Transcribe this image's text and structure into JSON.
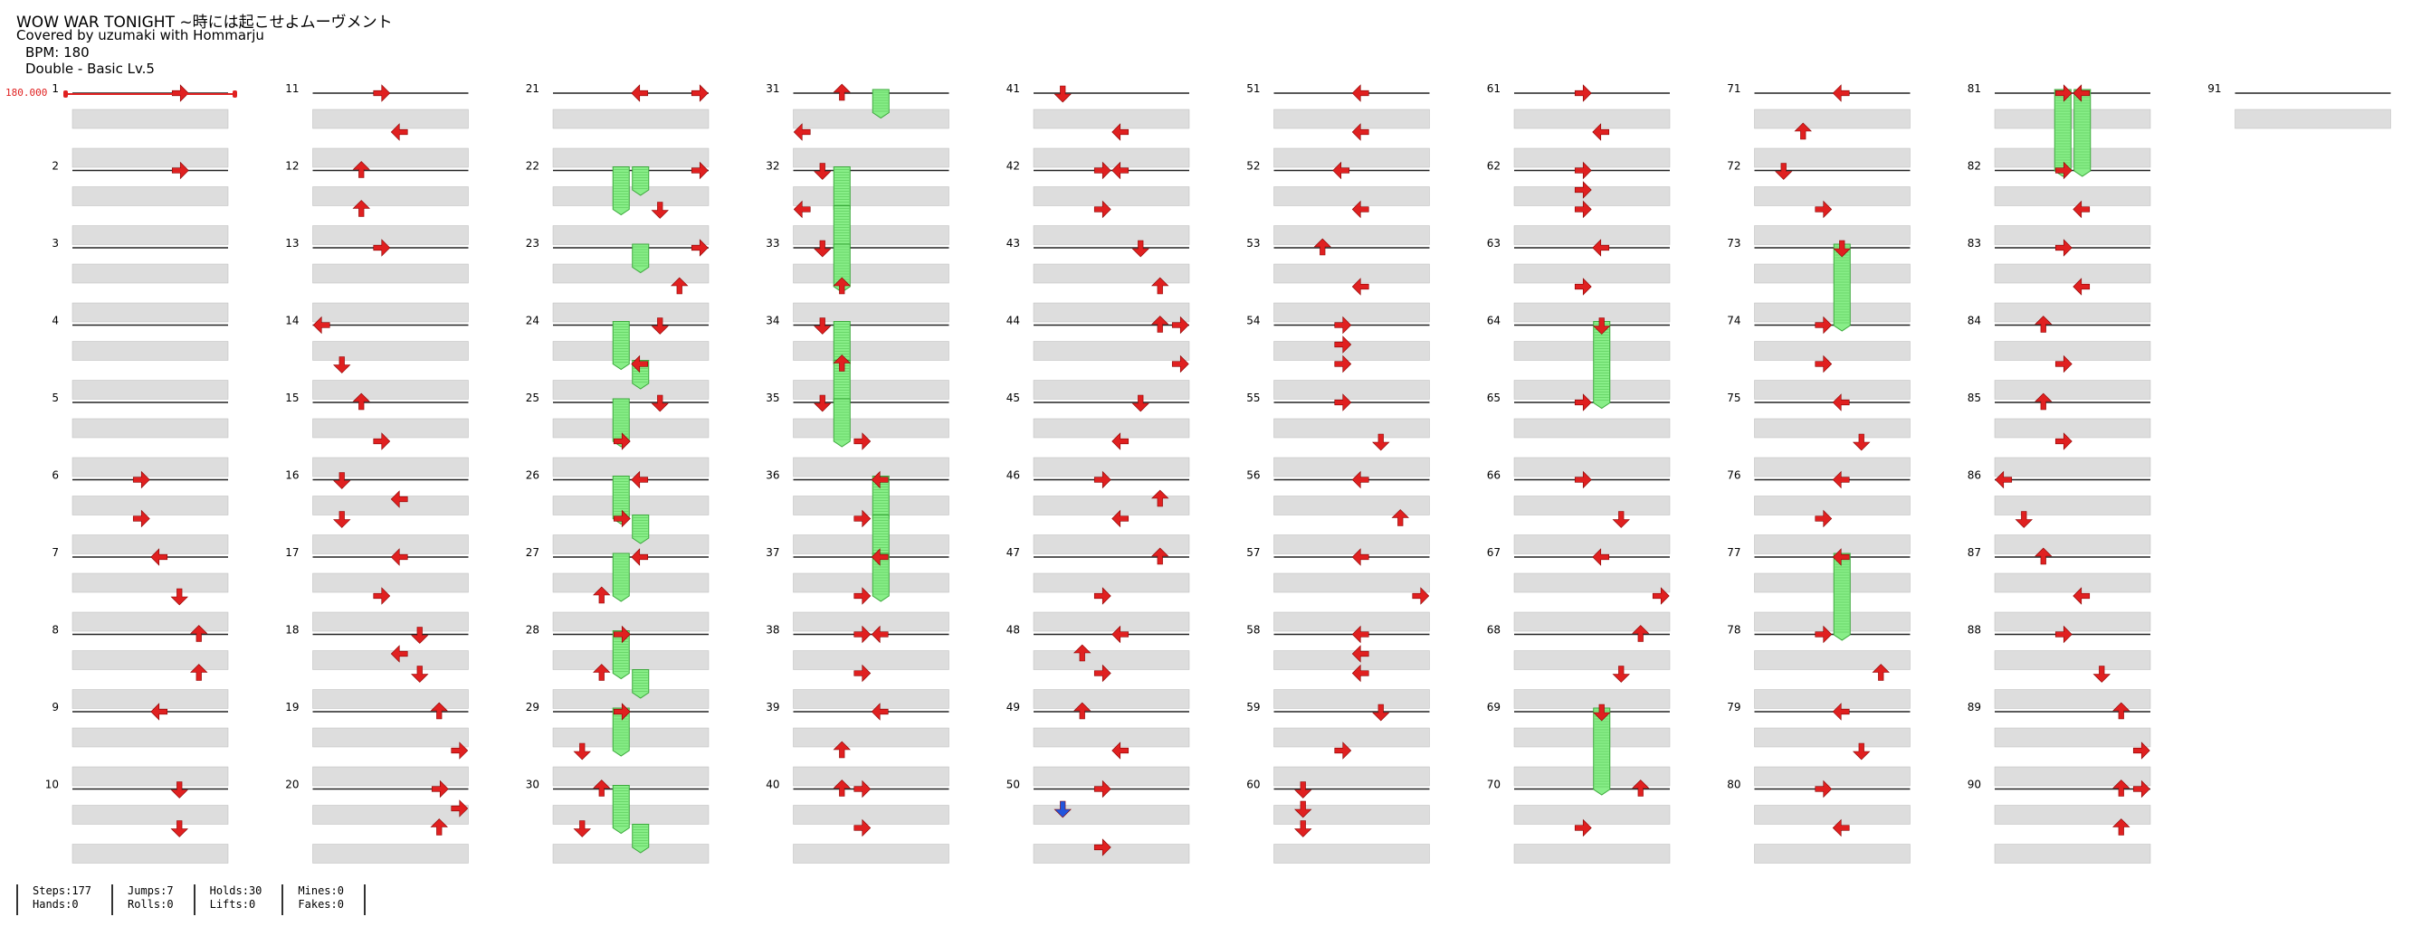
{
  "header": {
    "title": "WOW WAR TONIGHT ~時には起こせよムーヴメント",
    "credit": "Covered by uzumaki with Hommarju",
    "bpm_line": "BPM: 180",
    "difficulty_line": "Double - Basic Lv.5"
  },
  "bpm_marker": "180.000",
  "colors": {
    "note": "#e02020",
    "hold": "#88ee88",
    "special": "#2255dd",
    "line": "#222222",
    "band": "#dddddd"
  },
  "chart": {
    "measure_count": 91,
    "measure_labels": [
      "1",
      "2",
      "3",
      "4",
      "5",
      "6",
      "7",
      "8",
      "9",
      "10",
      "11",
      "12",
      "13",
      "14",
      "15",
      "16",
      "17",
      "18",
      "19",
      "20",
      "21",
      "22",
      "23",
      "24",
      "25",
      "26",
      "27",
      "28",
      "29",
      "30",
      "31",
      "32",
      "33",
      "34",
      "35",
      "36",
      "37",
      "38",
      "39",
      "40",
      "41",
      "42",
      "43",
      "44",
      "45",
      "46",
      "47",
      "48",
      "49",
      "50",
      "51",
      "52",
      "53",
      "54",
      "55",
      "56",
      "57",
      "58",
      "59",
      "60",
      "61",
      "62",
      "63",
      "64",
      "65",
      "66",
      "67",
      "68",
      "69",
      "70",
      "71",
      "72",
      "73",
      "74",
      "75",
      "76",
      "77",
      "78",
      "79",
      "80",
      "81",
      "82",
      "83",
      "84",
      "85",
      "86",
      "87",
      "88",
      "89",
      "90",
      "91"
    ],
    "lanes": 8,
    "holds": [
      [
        31,
        0,
        4,
        1
      ],
      [
        22,
        0,
        4,
        1
      ],
      [
        22,
        0,
        3,
        2
      ],
      [
        23,
        0,
        4,
        1
      ],
      [
        24,
        0,
        3,
        2
      ],
      [
        24,
        2,
        4,
        1
      ],
      [
        25,
        0,
        3,
        2
      ],
      [
        26,
        0,
        3,
        2
      ],
      [
        26,
        2,
        4,
        1
      ],
      [
        27,
        0,
        3,
        2
      ],
      [
        28,
        0,
        3,
        2
      ],
      [
        28,
        2,
        4,
        1
      ],
      [
        29,
        0,
        3,
        2
      ],
      [
        30,
        0,
        3,
        2
      ],
      [
        30,
        2,
        4,
        1
      ],
      [
        32,
        0,
        2,
        2
      ],
      [
        32,
        2,
        2,
        2
      ],
      [
        33,
        0,
        2,
        2
      ],
      [
        34,
        0,
        2,
        2
      ],
      [
        34,
        2,
        2,
        2
      ],
      [
        35,
        0,
        2,
        2
      ],
      [
        36,
        0,
        4,
        2
      ],
      [
        36,
        2,
        4,
        2
      ],
      [
        37,
        0,
        4,
        2
      ],
      [
        64,
        0,
        4,
        4
      ],
      [
        69,
        0,
        4,
        4
      ],
      [
        73,
        0,
        4,
        4
      ],
      [
        77,
        0,
        4,
        4
      ],
      [
        81,
        0,
        3,
        4
      ],
      [
        81,
        0,
        4,
        4
      ]
    ],
    "notes": [
      [
        1,
        0,
        5,
        "r"
      ],
      [
        2,
        0,
        5,
        "r"
      ],
      [
        6,
        0,
        3,
        "r"
      ],
      [
        6,
        2,
        3,
        "r"
      ],
      [
        7,
        0,
        4,
        "l"
      ],
      [
        7,
        2,
        5,
        "d"
      ],
      [
        8,
        0,
        6,
        "u"
      ],
      [
        8,
        2,
        6,
        "u"
      ],
      [
        9,
        0,
        4,
        "l"
      ],
      [
        10,
        0,
        5,
        "d"
      ],
      [
        10,
        2,
        5,
        "d"
      ],
      [
        11,
        0,
        3,
        "r"
      ],
      [
        11,
        2,
        4,
        "l"
      ],
      [
        12,
        0,
        2,
        "u"
      ],
      [
        12,
        2,
        2,
        "u"
      ],
      [
        13,
        0,
        3,
        "r"
      ],
      [
        14,
        0,
        0,
        "l"
      ],
      [
        14,
        2,
        1,
        "d"
      ],
      [
        15,
        0,
        2,
        "u"
      ],
      [
        15,
        2,
        3,
        "r"
      ],
      [
        16,
        0,
        1,
        "d"
      ],
      [
        16,
        1,
        4,
        "l"
      ],
      [
        16,
        2,
        1,
        "d"
      ],
      [
        17,
        0,
        4,
        "l"
      ],
      [
        17,
        2,
        3,
        "r"
      ],
      [
        18,
        0,
        5,
        "d"
      ],
      [
        18,
        1,
        4,
        "l"
      ],
      [
        18,
        2,
        5,
        "d"
      ],
      [
        19,
        0,
        6,
        "u"
      ],
      [
        19,
        2,
        7,
        "r"
      ],
      [
        20,
        0,
        6,
        "r"
      ],
      [
        20,
        1,
        7,
        "r"
      ],
      [
        20,
        2,
        6,
        "u"
      ],
      [
        21,
        0,
        4,
        "l"
      ],
      [
        21,
        0,
        7,
        "r"
      ],
      [
        22,
        0,
        7,
        "r"
      ],
      [
        22,
        2,
        5,
        "d"
      ],
      [
        23,
        0,
        7,
        "r"
      ],
      [
        23,
        2,
        6,
        "u"
      ],
      [
        24,
        0,
        5,
        "d"
      ],
      [
        24,
        2,
        4,
        "l"
      ],
      [
        25,
        0,
        5,
        "d"
      ],
      [
        25,
        2,
        3,
        "r"
      ],
      [
        26,
        0,
        4,
        "l"
      ],
      [
        26,
        2,
        3,
        "r"
      ],
      [
        27,
        0,
        4,
        "l"
      ],
      [
        27,
        2,
        2,
        "u"
      ],
      [
        28,
        0,
        3,
        "r"
      ],
      [
        28,
        2,
        2,
        "u"
      ],
      [
        29,
        0,
        3,
        "r"
      ],
      [
        29,
        2,
        1,
        "d"
      ],
      [
        30,
        0,
        2,
        "u"
      ],
      [
        30,
        2,
        1,
        "d"
      ],
      [
        31,
        0,
        2,
        "u"
      ],
      [
        31,
        2,
        0,
        "l"
      ],
      [
        32,
        0,
        1,
        "d"
      ],
      [
        32,
        2,
        0,
        "l"
      ],
      [
        33,
        0,
        1,
        "d"
      ],
      [
        33,
        2,
        2,
        "u"
      ],
      [
        34,
        0,
        1,
        "d"
      ],
      [
        34,
        2,
        2,
        "u"
      ],
      [
        35,
        0,
        1,
        "d"
      ],
      [
        35,
        2,
        3,
        "r"
      ],
      [
        36,
        0,
        4,
        "l"
      ],
      [
        36,
        2,
        3,
        "r"
      ],
      [
        37,
        0,
        4,
        "l"
      ],
      [
        37,
        2,
        3,
        "r"
      ],
      [
        38,
        0,
        3,
        "r"
      ],
      [
        38,
        0,
        4,
        "l"
      ],
      [
        38,
        2,
        3,
        "r"
      ],
      [
        39,
        0,
        4,
        "l"
      ],
      [
        39,
        2,
        2,
        "u"
      ],
      [
        40,
        0,
        2,
        "u"
      ],
      [
        40,
        0,
        3,
        "r"
      ],
      [
        40,
        2,
        3,
        "r"
      ],
      [
        41,
        0,
        1,
        "d"
      ],
      [
        41,
        2,
        4,
        "l"
      ],
      [
        42,
        0,
        3,
        "r"
      ],
      [
        42,
        0,
        4,
        "l"
      ],
      [
        42,
        2,
        3,
        "r"
      ],
      [
        43,
        0,
        5,
        "d"
      ],
      [
        43,
        2,
        6,
        "u"
      ],
      [
        44,
        0,
        6,
        "u"
      ],
      [
        44,
        0,
        7,
        "r"
      ],
      [
        44,
        2,
        7,
        "r"
      ],
      [
        45,
        0,
        5,
        "d"
      ],
      [
        45,
        2,
        4,
        "l"
      ],
      [
        46,
        0,
        3,
        "r"
      ],
      [
        46,
        1,
        6,
        "u"
      ],
      [
        46,
        2,
        4,
        "l"
      ],
      [
        47,
        0,
        6,
        "u"
      ],
      [
        47,
        2,
        3,
        "r"
      ],
      [
        48,
        0,
        4,
        "l"
      ],
      [
        48,
        1,
        2,
        "u"
      ],
      [
        48,
        2,
        3,
        "r"
      ],
      [
        49,
        0,
        2,
        "u"
      ],
      [
        49,
        2,
        4,
        "l"
      ],
      [
        50,
        0,
        3,
        "r"
      ],
      [
        50,
        3,
        3,
        "r"
      ],
      [
        51,
        0,
        4,
        "l"
      ],
      [
        51,
        2,
        4,
        "l"
      ],
      [
        52,
        0,
        3,
        "l"
      ],
      [
        52,
        2,
        4,
        "l"
      ],
      [
        53,
        0,
        2,
        "u"
      ],
      [
        53,
        2,
        4,
        "l"
      ],
      [
        54,
        0,
        3,
        "r"
      ],
      [
        54,
        1,
        3,
        "r"
      ],
      [
        54,
        2,
        3,
        "r"
      ],
      [
        55,
        0,
        3,
        "r"
      ],
      [
        55,
        2,
        5,
        "d"
      ],
      [
        56,
        0,
        4,
        "l"
      ],
      [
        56,
        2,
        6,
        "u"
      ],
      [
        57,
        0,
        4,
        "l"
      ],
      [
        57,
        2,
        7,
        "r"
      ],
      [
        58,
        0,
        4,
        "l"
      ],
      [
        58,
        1,
        4,
        "l"
      ],
      [
        58,
        2,
        4,
        "l"
      ],
      [
        59,
        0,
        5,
        "d"
      ],
      [
        59,
        2,
        3,
        "r"
      ],
      [
        60,
        0,
        1,
        "d"
      ],
      [
        60,
        1,
        1,
        "d"
      ],
      [
        60,
        2,
        1,
        "d"
      ],
      [
        61,
        0,
        3,
        "r"
      ],
      [
        61,
        2,
        4,
        "l"
      ],
      [
        62,
        0,
        3,
        "r"
      ],
      [
        62,
        1,
        3,
        "r"
      ],
      [
        62,
        2,
        3,
        "r"
      ],
      [
        63,
        0,
        4,
        "l"
      ],
      [
        63,
        2,
        3,
        "r"
      ],
      [
        64,
        0,
        4,
        "d"
      ],
      [
        65,
        0,
        3,
        "r"
      ],
      [
        66,
        0,
        3,
        "r"
      ],
      [
        66,
        2,
        5,
        "d"
      ],
      [
        67,
        0,
        4,
        "l"
      ],
      [
        67,
        2,
        7,
        "r"
      ],
      [
        68,
        0,
        6,
        "u"
      ],
      [
        68,
        2,
        5,
        "d"
      ],
      [
        69,
        0,
        4,
        "d"
      ],
      [
        70,
        0,
        6,
        "u"
      ],
      [
        70,
        2,
        3,
        "r"
      ],
      [
        71,
        0,
        4,
        "l"
      ],
      [
        71,
        2,
        2,
        "u"
      ],
      [
        72,
        0,
        1,
        "d"
      ],
      [
        72,
        2,
        3,
        "r"
      ],
      [
        73,
        0,
        4,
        "d"
      ],
      [
        74,
        0,
        3,
        "r"
      ],
      [
        74,
        2,
        3,
        "r"
      ],
      [
        75,
        0,
        4,
        "l"
      ],
      [
        75,
        2,
        5,
        "d"
      ],
      [
        76,
        0,
        4,
        "l"
      ],
      [
        76,
        2,
        3,
        "r"
      ],
      [
        77,
        0,
        4,
        "l"
      ],
      [
        78,
        0,
        3,
        "r"
      ],
      [
        78,
        2,
        6,
        "u"
      ],
      [
        79,
        0,
        4,
        "l"
      ],
      [
        79,
        2,
        5,
        "d"
      ],
      [
        80,
        0,
        3,
        "r"
      ],
      [
        80,
        2,
        4,
        "l"
      ],
      [
        81,
        0,
        3,
        "r"
      ],
      [
        81,
        0,
        4,
        "l"
      ],
      [
        82,
        0,
        3,
        "r"
      ],
      [
        82,
        2,
        4,
        "l"
      ],
      [
        83,
        0,
        3,
        "r"
      ],
      [
        83,
        2,
        4,
        "l"
      ],
      [
        84,
        0,
        2,
        "u"
      ],
      [
        84,
        2,
        3,
        "r"
      ],
      [
        85,
        0,
        2,
        "u"
      ],
      [
        85,
        2,
        3,
        "r"
      ],
      [
        86,
        0,
        0,
        "l"
      ],
      [
        86,
        2,
        1,
        "d"
      ],
      [
        87,
        0,
        2,
        "u"
      ],
      [
        87,
        2,
        4,
        "l"
      ],
      [
        88,
        0,
        3,
        "r"
      ],
      [
        88,
        2,
        5,
        "d"
      ],
      [
        89,
        0,
        6,
        "u"
      ],
      [
        89,
        2,
        7,
        "r"
      ],
      [
        90,
        0,
        6,
        "u"
      ],
      [
        90,
        0,
        7,
        "r"
      ],
      [
        90,
        2,
        6,
        "u"
      ]
    ],
    "special_notes": [
      [
        50,
        1,
        1,
        "d"
      ]
    ]
  },
  "stats": {
    "steps": "Steps:177",
    "hands": "Hands:0",
    "jumps": "Jumps:7",
    "rolls": "Rolls:0",
    "holds": "Holds:30",
    "lifts": "Lifts:0",
    "mines": "Mines:0",
    "fakes": "Fakes:0"
  }
}
